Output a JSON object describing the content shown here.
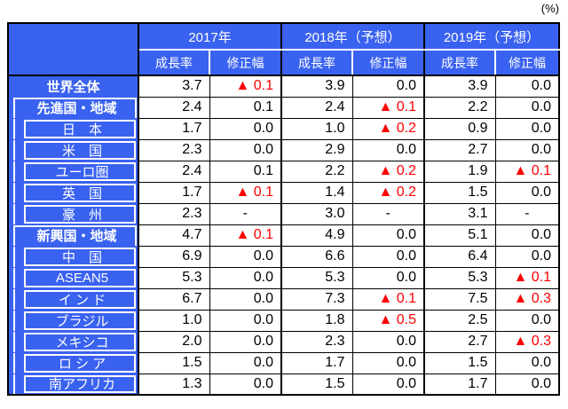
{
  "unit_label": "(%)",
  "colors": {
    "header_blue": "#3a62f0",
    "negative_red": "#ff0000",
    "border_black": "#000000"
  },
  "table": {
    "column_groups": [
      "2017年",
      "2018年（予想）",
      "2019年（予想）"
    ],
    "sub_headers": [
      "成長率",
      "修正幅"
    ],
    "negative_marker": "▲",
    "rows": [
      {
        "label": "世界全体",
        "level": 0,
        "values": [
          "3.7",
          "▲ 0.1",
          "3.9",
          "0.0",
          "3.9",
          "0.0"
        ]
      },
      {
        "label": "先進国・地域",
        "level": 1,
        "values": [
          "2.4",
          "0.1",
          "2.4",
          "▲ 0.1",
          "2.2",
          "0.0"
        ]
      },
      {
        "label": "日　本",
        "level": 2,
        "values": [
          "1.7",
          "0.0",
          "1.0",
          "▲ 0.2",
          "0.9",
          "0.0"
        ]
      },
      {
        "label": "米　国",
        "level": 2,
        "values": [
          "2.3",
          "0.0",
          "2.9",
          "0.0",
          "2.7",
          "0.0"
        ]
      },
      {
        "label": "ユーロ圏",
        "level": 2,
        "values": [
          "2.4",
          "0.1",
          "2.2",
          "▲ 0.2",
          "1.9",
          "▲ 0.1"
        ]
      },
      {
        "label": "英　国",
        "level": 2,
        "values": [
          "1.7",
          "▲ 0.1",
          "1.4",
          "▲ 0.2",
          "1.5",
          "0.0"
        ]
      },
      {
        "label": "豪　州",
        "level": 2,
        "values": [
          "2.3",
          "-",
          "3.0",
          "-",
          "3.1",
          "-"
        ]
      },
      {
        "label": "新興国・地域",
        "level": 1,
        "values": [
          "4.7",
          "▲ 0.1",
          "4.9",
          "0.0",
          "5.1",
          "0.0"
        ]
      },
      {
        "label": "中　国",
        "level": 2,
        "values": [
          "6.9",
          "0.0",
          "6.6",
          "0.0",
          "6.4",
          "0.0"
        ]
      },
      {
        "label": "ASEAN5",
        "level": 2,
        "values": [
          "5.3",
          "0.0",
          "5.3",
          "0.0",
          "5.3",
          "▲ 0.1"
        ]
      },
      {
        "label": "イ ン ド",
        "level": 2,
        "values": [
          "6.7",
          "0.0",
          "7.3",
          "▲ 0.1",
          "7.5",
          "▲ 0.3"
        ]
      },
      {
        "label": "ブラジル",
        "level": 2,
        "values": [
          "1.0",
          "0.0",
          "1.8",
          "▲ 0.5",
          "2.5",
          "0.0"
        ]
      },
      {
        "label": "メキシコ",
        "level": 2,
        "values": [
          "2.0",
          "0.0",
          "2.3",
          "0.0",
          "2.7",
          "▲ 0.3"
        ]
      },
      {
        "label": "ロ シ ア",
        "level": 2,
        "values": [
          "1.5",
          "0.0",
          "1.7",
          "0.0",
          "1.5",
          "0.0"
        ]
      },
      {
        "label": "南アフリカ",
        "level": 2,
        "values": [
          "1.3",
          "0.0",
          "1.5",
          "0.0",
          "1.7",
          "0.0"
        ]
      }
    ]
  }
}
